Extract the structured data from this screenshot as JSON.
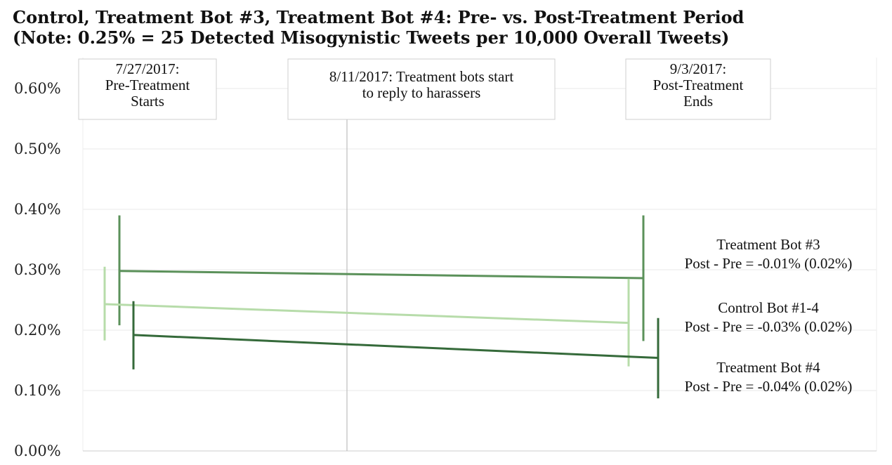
{
  "chart_data": {
    "type": "line",
    "title": "Control, Treatment Bot #3, Treatment Bot #4: Pre- vs. Post-Treatment Period",
    "subtitle": "(Note: 0.25% = 25 Detected Misogynistic Tweets per 10,000 Overall Tweets)",
    "ylabel": "",
    "xlabel": "",
    "ylim": [
      0,
      0.62
    ],
    "yticks": [
      0.0,
      0.1,
      0.2,
      0.3,
      0.4,
      0.5,
      0.6
    ],
    "ytick_labels": [
      "0.00%",
      "0.10%",
      "0.20%",
      "0.30%",
      "0.40%",
      "0.50%",
      "0.60%"
    ],
    "grid": true,
    "annotations": [
      {
        "date": "2017-07-27",
        "lines": [
          "7/27/2017:",
          "Pre-Treatment",
          "Starts"
        ]
      },
      {
        "date": "2017-08-11",
        "lines": [
          "8/11/2017: Treatment bots start",
          "to reply to harassers"
        ]
      },
      {
        "date": "2017-09-03",
        "lines": [
          "9/3/2017:",
          "Post-Treatment",
          "Ends"
        ]
      }
    ],
    "series": [
      {
        "name": "Treatment Bot #3",
        "label_line2": "Post - Pre = -0.01% (0.02%)",
        "color": "#5b915a",
        "pre": 0.298,
        "pre_err": [
          0.208,
          0.39
        ],
        "post": 0.286,
        "post_err": [
          0.182,
          0.39
        ]
      },
      {
        "name": "Control Bot #1-4",
        "label_line2": "Post - Pre = -0.03% (0.02%)",
        "color": "#b7dcaa",
        "pre": 0.243,
        "pre_err": [
          0.183,
          0.305
        ],
        "post": 0.212,
        "post_err": [
          0.14,
          0.285
        ]
      },
      {
        "name": "Treatment Bot #4",
        "label_line2": "Post - Pre = -0.04% (0.02%)",
        "color": "#356a3a",
        "pre": 0.192,
        "pre_err": [
          0.135,
          0.248
        ],
        "post": 0.154,
        "post_err": [
          0.087,
          0.22
        ]
      }
    ]
  }
}
